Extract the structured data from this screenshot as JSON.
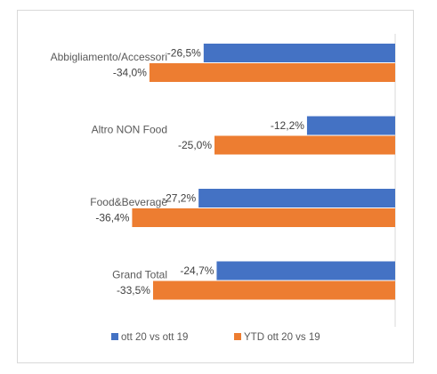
{
  "chart_data": {
    "type": "bar",
    "orientation": "horizontal",
    "categories": [
      "Abbigliamento/Accessori",
      "Altro NON Food",
      "Food&Beverage",
      "Grand Total"
    ],
    "series": [
      {
        "name": "ott 20 vs ott 19",
        "values": [
          -26.5,
          -12.2,
          -27.2,
          -24.7
        ],
        "labels": [
          "-26,5%",
          "-12,2%",
          "-27,2%",
          "-24,7%"
        ],
        "color": "#4472C4"
      },
      {
        "name": "YTD ott 20 vs 19",
        "values": [
          -34.0,
          -25.0,
          -36.4,
          -33.5
        ],
        "labels": [
          "-34,0%",
          "-25,0%",
          "-36,4%",
          "-33,5%"
        ],
        "color": "#ED7D31"
      }
    ],
    "xlim": [
      -46,
      0
    ],
    "legend_position": "bottom",
    "grid": false
  }
}
